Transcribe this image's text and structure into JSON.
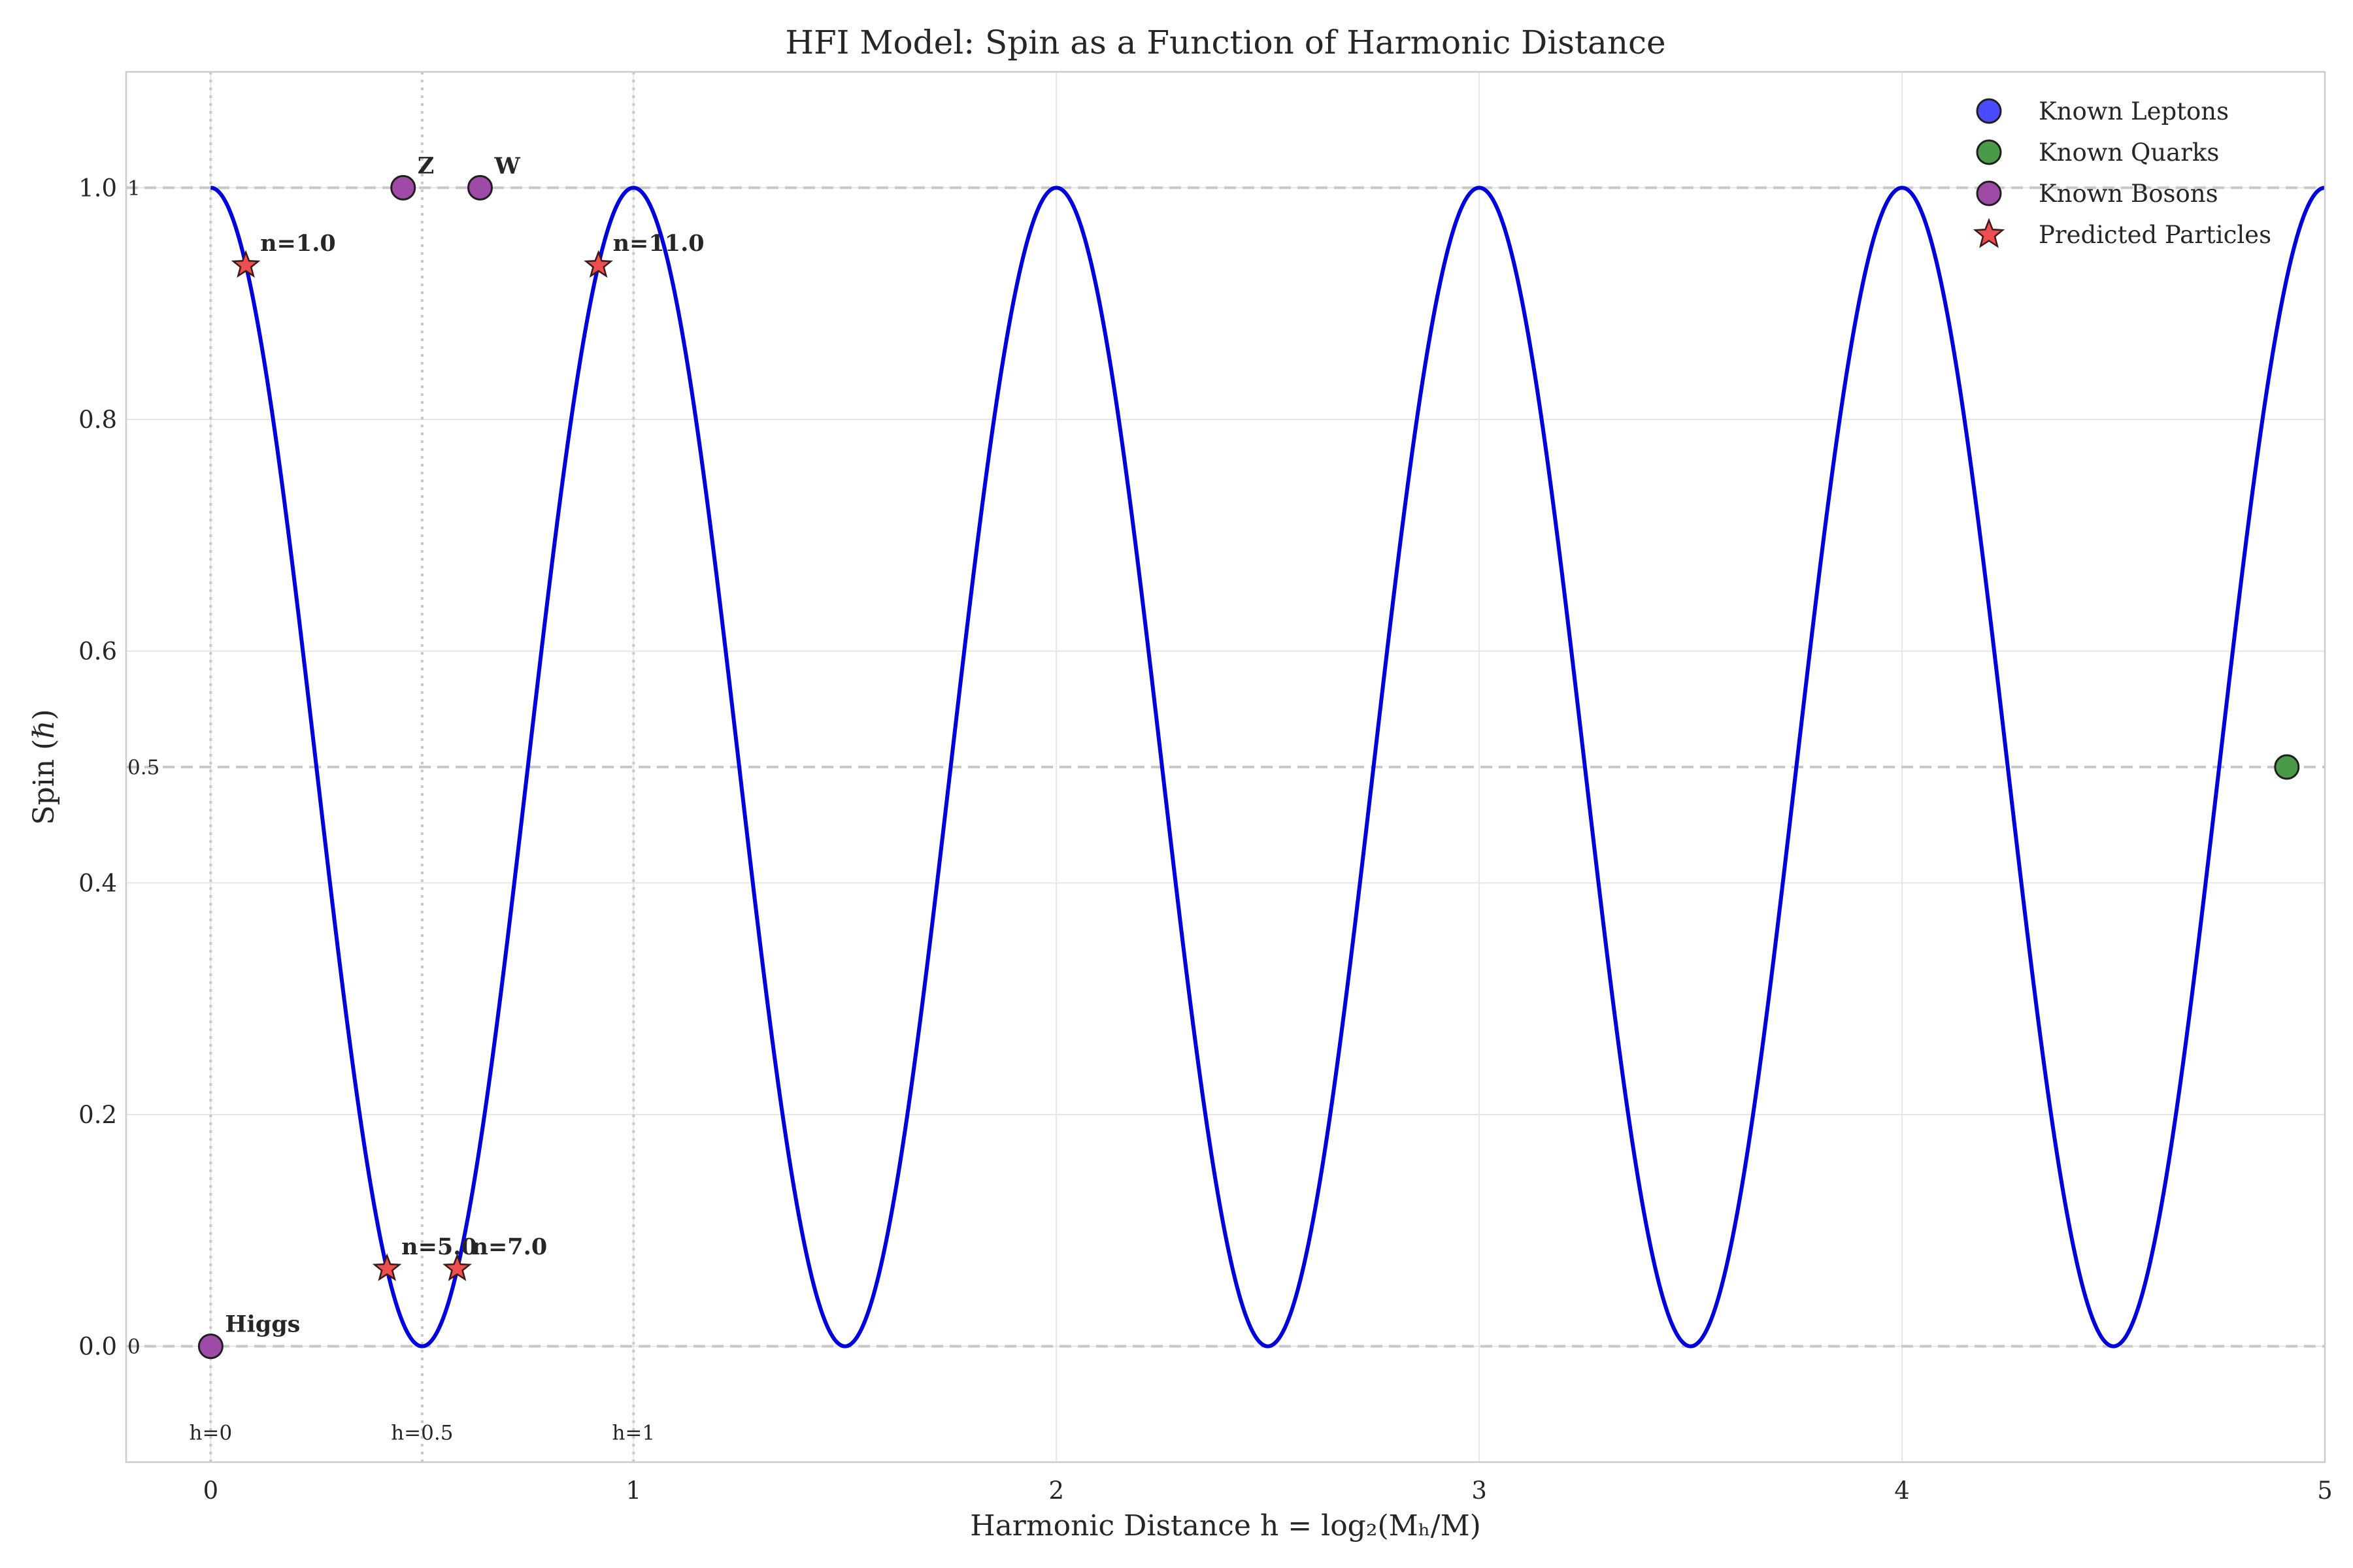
{
  "chart_data": {
    "type": "scatter",
    "title": "HFI Model: Spin as a Function of Harmonic Distance",
    "xlabel": "Harmonic Distance h = log₂(Mₕ/M)",
    "ylabel": "Spin (ℏ)",
    "xlim": [
      -0.2,
      5.0
    ],
    "ylim": [
      -0.1,
      1.1
    ],
    "xticks": [
      "0",
      "1",
      "2",
      "3",
      "4",
      "5"
    ],
    "yticks": [
      "0.0",
      "0.2",
      "0.4",
      "0.6",
      "0.8",
      "1.0"
    ],
    "grid": true,
    "legend_position": "top-right",
    "curve": {
      "formula": "(1 + cos(2πh)) / 2",
      "color": "#0000dd",
      "x_range": [
        0,
        5
      ]
    },
    "reference_lines": {
      "horizontal": [
        {
          "y": 1.0,
          "label": "1"
        },
        {
          "y": 0.5,
          "label": "0.5"
        },
        {
          "y": 0.0,
          "label": "0"
        }
      ],
      "vertical": [
        {
          "x": 0.0,
          "label": "h=0"
        },
        {
          "x": 0.5,
          "label": "h=0.5"
        },
        {
          "x": 1.0,
          "label": "h=1"
        }
      ]
    },
    "series": [
      {
        "name": "Known Leptons",
        "marker": "circle",
        "color": "#4a4aff",
        "points": []
      },
      {
        "name": "Known Quarks",
        "marker": "circle",
        "color": "#4a9a4a",
        "points": [
          {
            "x": 4.91,
            "y": 0.5,
            "label": ""
          }
        ]
      },
      {
        "name": "Known Bosons",
        "marker": "circle",
        "color": "#a04aa8",
        "points": [
          {
            "x": 0.0,
            "y": 0.0,
            "label": "Higgs"
          },
          {
            "x": 0.455,
            "y": 1.0,
            "label": "Z"
          },
          {
            "x": 0.637,
            "y": 1.0,
            "label": "W"
          }
        ]
      },
      {
        "name": "Predicted Particles",
        "marker": "star",
        "color": "#f04e4e",
        "points": [
          {
            "x": 0.083,
            "y": 0.933,
            "label": "n=1.0"
          },
          {
            "x": 0.417,
            "y": 0.067,
            "label": "n=5.0"
          },
          {
            "x": 0.583,
            "y": 0.067,
            "label": "n=7.0"
          },
          {
            "x": 0.917,
            "y": 0.933,
            "label": "n=11.0"
          }
        ]
      }
    ]
  }
}
